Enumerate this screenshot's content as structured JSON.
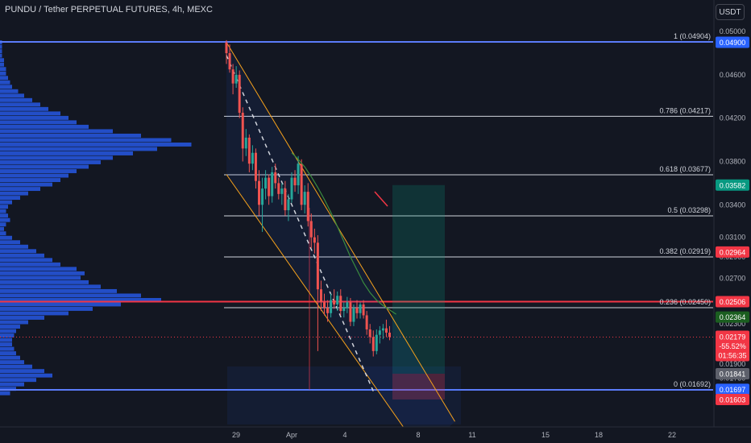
{
  "header": {
    "title": "PUNDU / Tether PERPETUAL FUTURES, 4h, MEXC",
    "currency_button": "USDT"
  },
  "chart_data": {
    "type": "candlestick",
    "y_axis": {
      "ticks": [
        "0.05000",
        "0.04600",
        "0.04200",
        "0.03800",
        "0.03400",
        "0.03100",
        "0.02900",
        "0.02700",
        "0.02300",
        "0.01900",
        "0.01780",
        "0.01660",
        "0.01560"
      ]
    },
    "x_axis": {
      "ticks": [
        "29",
        "Apr",
        "4",
        "8",
        "11",
        "15",
        "18",
        "22"
      ]
    },
    "fib_levels": [
      {
        "ratio": "1",
        "value": 0.04904,
        "label": "1 (0.04904)"
      },
      {
        "ratio": "0.786",
        "value": 0.04217,
        "label": "0.786 (0.04217)"
      },
      {
        "ratio": "0.618",
        "value": 0.03677,
        "label": "0.618 (0.03677)"
      },
      {
        "ratio": "0.5",
        "value": 0.03298,
        "label": "0.5 (0.03298)"
      },
      {
        "ratio": "0.382",
        "value": 0.02919,
        "label": "0.382 (0.02919)"
      },
      {
        "ratio": "0.236",
        "value": 0.0245,
        "label": "0.236 (0.02450)"
      },
      {
        "ratio": "0",
        "value": 0.01692,
        "label": "0 (0.01692)"
      }
    ],
    "price_badges": [
      {
        "value": 0.049,
        "text": "0.04900",
        "color": "#2962ff"
      },
      {
        "value": 0.03582,
        "text": "0.03582",
        "color": "#089981"
      },
      {
        "value": 0.02964,
        "text": "0.02964",
        "color": "#f23645"
      },
      {
        "value": 0.02506,
        "text": "0.02506",
        "color": "#f23645"
      },
      {
        "value": 0.02364,
        "text": "0.02364",
        "color": "#1b5e20"
      },
      {
        "value": 0.01841,
        "text": "0.01841",
        "color": "#5d606b"
      },
      {
        "value": 0.01697,
        "text": "0.01697",
        "color": "#2962ff"
      },
      {
        "value": 0.01603,
        "text": "0.01603",
        "color": "#f23645"
      }
    ],
    "current_price": {
      "value": 0.02179,
      "text": "0.02179",
      "change": "-55.52%",
      "countdown": "01:56:35",
      "color": "#f23645"
    },
    "candles": [
      [
        0.049,
        0.0492,
        0.047,
        0.048
      ],
      [
        0.048,
        0.0488,
        0.0462,
        0.0465
      ],
      [
        0.0465,
        0.047,
        0.0442,
        0.0452
      ],
      [
        0.0452,
        0.0468,
        0.0448,
        0.046
      ],
      [
        0.046,
        0.0464,
        0.042,
        0.0425
      ],
      [
        0.0425,
        0.043,
        0.038,
        0.0392
      ],
      [
        0.0392,
        0.041,
        0.0385,
        0.0402
      ],
      [
        0.0402,
        0.0405,
        0.037,
        0.0378
      ],
      [
        0.0378,
        0.0395,
        0.0372,
        0.0388
      ],
      [
        0.0388,
        0.0392,
        0.0355,
        0.0362
      ],
      [
        0.0362,
        0.0372,
        0.033,
        0.034
      ],
      [
        0.034,
        0.0365,
        0.0315,
        0.0355
      ],
      [
        0.0355,
        0.0372,
        0.0345,
        0.0365
      ],
      [
        0.0365,
        0.0368,
        0.034,
        0.0348
      ],
      [
        0.0348,
        0.0375,
        0.0342,
        0.037
      ],
      [
        0.037,
        0.0378,
        0.0355,
        0.036
      ],
      [
        0.036,
        0.0365,
        0.0345,
        0.035
      ],
      [
        0.035,
        0.036,
        0.034,
        0.0355
      ],
      [
        0.0355,
        0.0362,
        0.033,
        0.0335
      ],
      [
        0.0335,
        0.035,
        0.0325,
        0.0345
      ],
      [
        0.0345,
        0.037,
        0.0342,
        0.0365
      ],
      [
        0.0365,
        0.0372,
        0.0352,
        0.0358
      ],
      [
        0.0358,
        0.0385,
        0.035,
        0.0378
      ],
      [
        0.0378,
        0.0382,
        0.0335,
        0.034
      ],
      [
        0.034,
        0.0358,
        0.0332,
        0.0352
      ],
      [
        0.0352,
        0.036,
        0.032,
        0.0325
      ],
      [
        0.0325,
        0.0332,
        0.03,
        0.031
      ],
      [
        0.031,
        0.0318,
        0.0295,
        0.0305
      ],
      [
        0.0305,
        0.0312,
        0.0205,
        0.0262
      ],
      [
        0.0262,
        0.027,
        0.0242,
        0.025
      ],
      [
        0.025,
        0.0258,
        0.0238,
        0.0245
      ],
      [
        0.0245,
        0.0252,
        0.0232,
        0.024
      ],
      [
        0.024,
        0.0258,
        0.0236,
        0.0252
      ],
      [
        0.0252,
        0.0262,
        0.0244,
        0.0248
      ],
      [
        0.0248,
        0.026,
        0.0242,
        0.0256
      ],
      [
        0.0256,
        0.0262,
        0.0238,
        0.0242
      ],
      [
        0.0242,
        0.025,
        0.0236,
        0.0245
      ],
      [
        0.0245,
        0.0255,
        0.024,
        0.025
      ],
      [
        0.025,
        0.0254,
        0.0228,
        0.0232
      ],
      [
        0.0232,
        0.0248,
        0.0228,
        0.0245
      ],
      [
        0.0245,
        0.0252,
        0.0235,
        0.024
      ],
      [
        0.024,
        0.025,
        0.0235,
        0.0248
      ],
      [
        0.0248,
        0.0252,
        0.0235,
        0.0238
      ],
      [
        0.0238,
        0.0242,
        0.022,
        0.0225
      ],
      [
        0.0225,
        0.023,
        0.0212,
        0.0218
      ],
      [
        0.0218,
        0.0224,
        0.02,
        0.0205
      ],
      [
        0.0205,
        0.0225,
        0.0202,
        0.022
      ],
      [
        0.022,
        0.0228,
        0.0212,
        0.0224
      ],
      [
        0.0224,
        0.023,
        0.0216,
        0.0226
      ],
      [
        0.0226,
        0.0234,
        0.0218,
        0.0222
      ],
      [
        0.0222,
        0.0228,
        0.0215,
        0.0218
      ]
    ],
    "moving_average": [
      0.0388,
      0.0382,
      0.0375,
      0.0366,
      0.0356,
      0.0345,
      0.0333,
      0.032,
      0.0306,
      0.0292,
      0.028,
      0.0268,
      0.0259,
      0.0252,
      0.0247,
      0.0243,
      0.0239
    ],
    "volume_profile": [
      0.05,
      0.08,
      0.12,
      0.18,
      0.26,
      0.22,
      0.16,
      0.12,
      0.1,
      0.08,
      0.07,
      0.06,
      0.06,
      0.07,
      0.08,
      0.1,
      0.14,
      0.22,
      0.34,
      0.46,
      0.6,
      0.8,
      0.7,
      0.58,
      0.5,
      0.44,
      0.4,
      0.42,
      0.38,
      0.3,
      0.26,
      0.22,
      0.18,
      0.14,
      0.1,
      0.06,
      0.03,
      0.02,
      0.03,
      0.05,
      0.04,
      0.03,
      0.04,
      0.06,
      0.1,
      0.14,
      0.2,
      0.26,
      0.3,
      0.34,
      0.38,
      0.44,
      0.5,
      0.56,
      0.66,
      0.78,
      0.95,
      0.85,
      0.7,
      0.56,
      0.44,
      0.38,
      0.34,
      0.3,
      0.24,
      0.2,
      0.16,
      0.12,
      0.09,
      0.06,
      0.05,
      0.04,
      0.03,
      0.03,
      0.02,
      0.02,
      0.01,
      0.01,
      0.01,
      0.01
    ],
    "volume_profile_range": [
      0.0164,
      0.0492
    ],
    "poc_price": 0.02506,
    "long_position": {
      "entry": 0.01841,
      "target": 0.03582,
      "stop": 0.01603
    },
    "channel": {
      "upper": [
        [
          0,
          0.049
        ],
        [
          47,
          0.021
        ],
        [
          70,
          0.014
        ]
      ],
      "lower": [
        [
          0,
          0.0368
        ],
        [
          47,
          0.0182
        ],
        [
          60,
          0.011
        ]
      ]
    },
    "projection": [
      [
        0,
        0.0478
      ],
      [
        45,
        0.0168
      ]
    ]
  }
}
